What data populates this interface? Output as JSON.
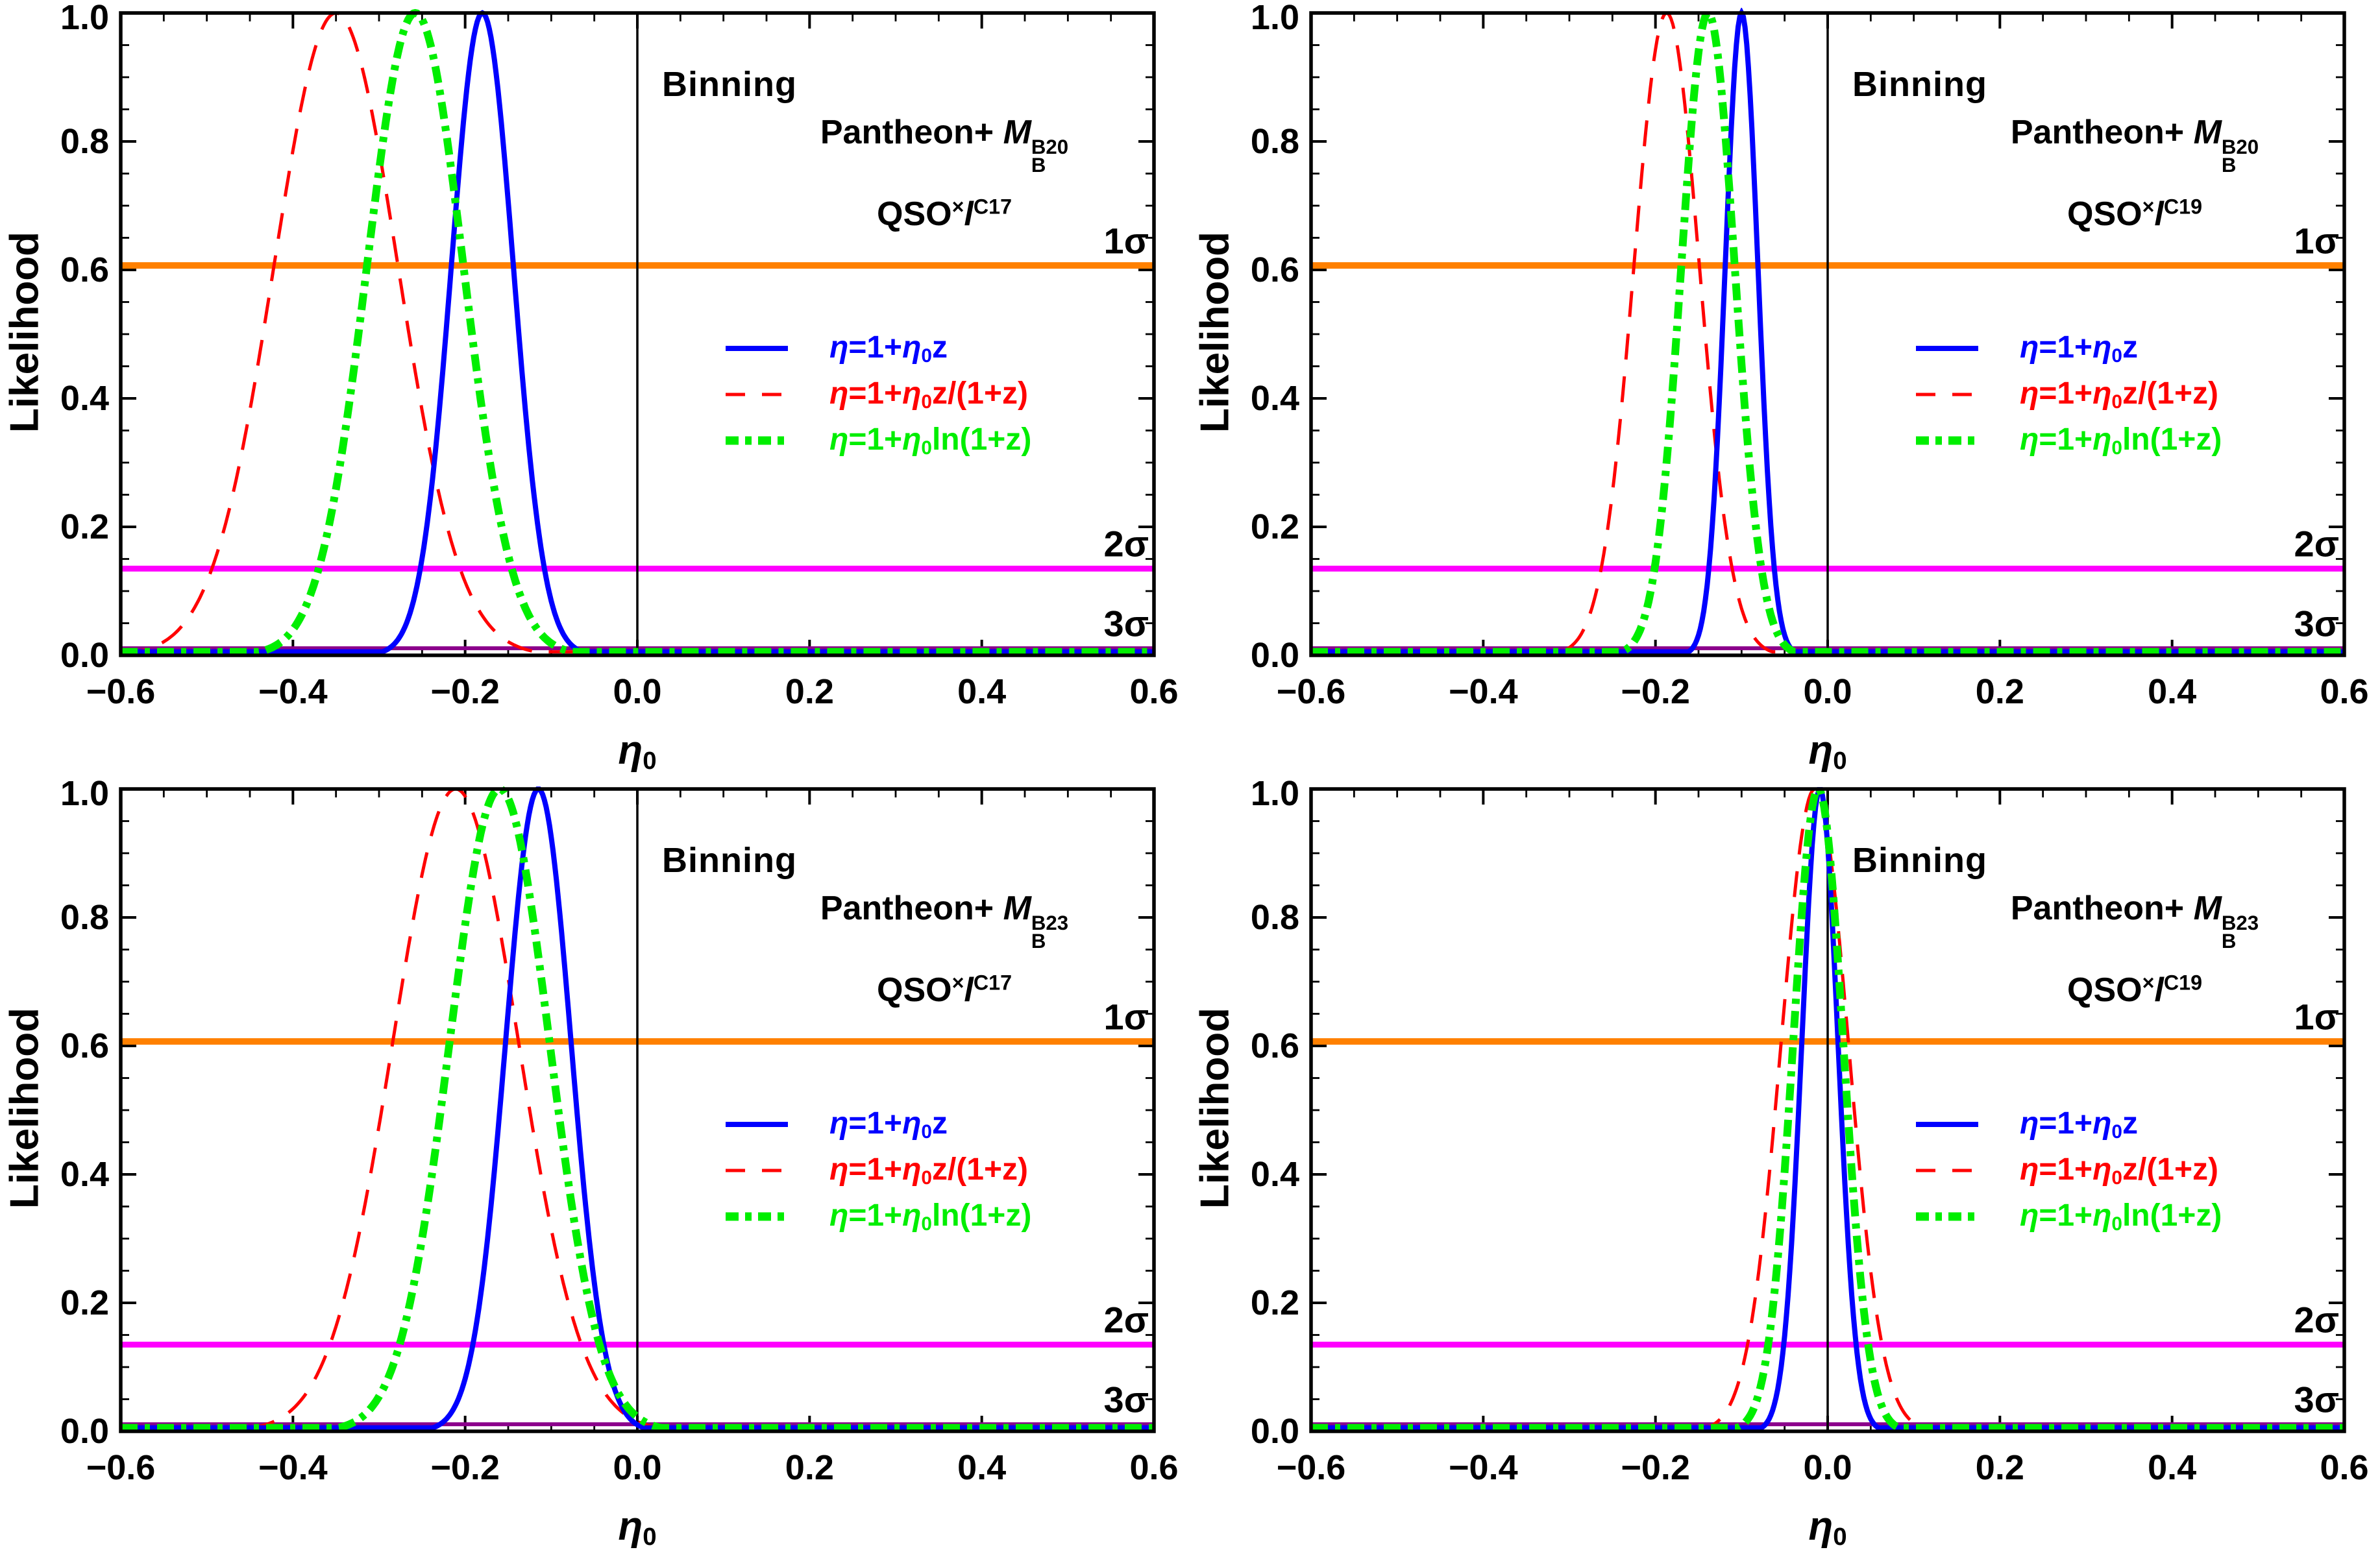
{
  "page": {
    "background": "#FFFFFF"
  },
  "chart_data": {
    "type": "line",
    "model": "gaussian likelihood: L(x)=peak*exp(-(x-mean)^2/(2*sigma^2))",
    "axes": {
      "ylabel": "Likelihood",
      "xlabel_parts": [
        {
          "t": "η",
          "i": true
        },
        {
          "t": "0",
          "pos": "sub"
        }
      ],
      "xlim": [
        -0.6,
        0.6
      ],
      "ylim": [
        0,
        1.0
      ],
      "x_major_ticks": [
        -0.6,
        -0.4,
        -0.2,
        0.0,
        0.2,
        0.4,
        0.6
      ],
      "x_tick_labels": [
        "−0.6",
        "−0.4",
        "−0.2",
        "0.0",
        "0.2",
        "0.4",
        "0.6"
      ],
      "y_major_ticks": [
        0.0,
        0.2,
        0.4,
        0.6,
        0.8,
        1.0
      ],
      "y_tick_labels": [
        "0.0",
        "0.2",
        "0.4",
        "0.6",
        "0.8",
        "1.0"
      ],
      "minor_tick_step": 0.05,
      "grid": false,
      "zero_reference_line_x": 0.0,
      "draw_order": [
        1,
        0,
        2
      ],
      "frame_color": "#000000"
    },
    "panels": [
      {
        "position": "top-left",
        "binning_label": "Binning",
        "title": {
          "line1_parts": [
            {
              "t": "Pantheon+ "
            },
            {
              "t": "M",
              "i": true
            },
            {
              "sup": "B20",
              "sub": "B"
            }
          ],
          "line2_parts": [
            {
              "t": "QSO"
            },
            {
              "t": "×",
              "pos": "sup"
            },
            {
              "t": "l",
              "i": true
            },
            {
              "t": "C17",
              "pos": "sup"
            }
          ]
        },
        "thresholds": [
          {
            "label": "1σ",
            "value": 0.607,
            "color": "#FF8000",
            "width": 10
          },
          {
            "label": "2σ",
            "value": 0.135,
            "color": "#FF00FF",
            "width": 9
          },
          {
            "label": "3σ",
            "value": 0.011,
            "color": "#8B008B",
            "width": 6
          }
        ],
        "series": [
          {
            "name": "eta-linear",
            "color": "#0000FF",
            "dash": "solid",
            "stroke_width": 8,
            "mean": -0.18,
            "sigma": 0.036,
            "peak": 1.0,
            "label_parts": [
              {
                "t": "η",
                "i": true
              },
              {
                "t": "=1+"
              },
              {
                "t": "η",
                "i": true
              },
              {
                "t": "0",
                "pos": "sub"
              },
              {
                "t": "z"
              }
            ]
          },
          {
            "name": "eta-z-over-1plusz",
            "color": "#FF0000",
            "dash": "dashed",
            "stroke_width": 5,
            "mean": -0.35,
            "sigma": 0.072,
            "peak": 1.0,
            "label_parts": [
              {
                "t": "η",
                "i": true
              },
              {
                "t": "=1+"
              },
              {
                "t": "η",
                "i": true
              },
              {
                "t": "0",
                "pos": "sub"
              },
              {
                "t": "z/(1+z)"
              }
            ]
          },
          {
            "name": "eta-log",
            "color": "#00EE00",
            "dash": "dashdot",
            "stroke_width": 12,
            "mean": -0.258,
            "sigma": 0.056,
            "peak": 1.0,
            "label_parts": [
              {
                "t": "η",
                "i": true
              },
              {
                "t": "=1+"
              },
              {
                "t": "η",
                "i": true
              },
              {
                "t": "0",
                "pos": "sub"
              },
              {
                "t": "ln(1+z)"
              }
            ]
          }
        ]
      },
      {
        "position": "top-right",
        "binning_label": "Binning",
        "title": {
          "line1_parts": [
            {
              "t": "Pantheon+ "
            },
            {
              "t": "M",
              "i": true
            },
            {
              "sup": "B20",
              "sub": "B"
            }
          ],
          "line2_parts": [
            {
              "t": "QSO"
            },
            {
              "t": "×",
              "pos": "sup"
            },
            {
              "t": "l",
              "i": true
            },
            {
              "t": "C19",
              "pos": "sup"
            }
          ]
        },
        "thresholds": [
          {
            "label": "1σ",
            "value": 0.607,
            "color": "#FF8000",
            "width": 10
          },
          {
            "label": "2σ",
            "value": 0.135,
            "color": "#FF00FF",
            "width": 9
          },
          {
            "label": "3σ",
            "value": 0.011,
            "color": "#8B008B",
            "width": 6
          }
        ],
        "series": [
          {
            "name": "eta-linear",
            "color": "#0000FF",
            "dash": "solid",
            "stroke_width": 8,
            "mean": -0.1,
            "sigma": 0.019,
            "peak": 1.0,
            "label_parts": [
              {
                "t": "η",
                "i": true
              },
              {
                "t": "=1+"
              },
              {
                "t": "η",
                "i": true
              },
              {
                "t": "0",
                "pos": "sub"
              },
              {
                "t": "z"
              }
            ]
          },
          {
            "name": "eta-z-over-1plusz",
            "color": "#FF0000",
            "dash": "dashed",
            "stroke_width": 5,
            "mean": -0.187,
            "sigma": 0.038,
            "peak": 1.0,
            "label_parts": [
              {
                "t": "η",
                "i": true
              },
              {
                "t": "=1+"
              },
              {
                "t": "η",
                "i": true
              },
              {
                "t": "0",
                "pos": "sub"
              },
              {
                "t": "z/(1+z)"
              }
            ]
          },
          {
            "name": "eta-log",
            "color": "#00EE00",
            "dash": "dashdot",
            "stroke_width": 12,
            "mean": -0.139,
            "sigma": 0.031,
            "peak": 1.0,
            "label_parts": [
              {
                "t": "η",
                "i": true
              },
              {
                "t": "=1+"
              },
              {
                "t": "η",
                "i": true
              },
              {
                "t": "0",
                "pos": "sub"
              },
              {
                "t": "ln(1+z)"
              }
            ]
          }
        ]
      },
      {
        "position": "bottom-left",
        "binning_label": "Binning",
        "title": {
          "line1_parts": [
            {
              "t": "Pantheon+ "
            },
            {
              "t": "M",
              "i": true
            },
            {
              "sup": "B23",
              "sub": "B"
            }
          ],
          "line2_parts": [
            {
              "t": "QSO"
            },
            {
              "t": "×",
              "pos": "sup"
            },
            {
              "t": "l",
              "i": true
            },
            {
              "t": "C17",
              "pos": "sup"
            }
          ]
        },
        "thresholds": [
          {
            "label": "1σ",
            "value": 0.607,
            "color": "#FF8000",
            "width": 10
          },
          {
            "label": "2σ",
            "value": 0.135,
            "color": "#FF00FF",
            "width": 9
          },
          {
            "label": "3σ",
            "value": 0.011,
            "color": "#8B008B",
            "width": 6
          }
        ],
        "series": [
          {
            "name": "eta-linear",
            "color": "#0000FF",
            "dash": "solid",
            "stroke_width": 8,
            "mean": -0.115,
            "sigma": 0.038,
            "peak": 1.0,
            "label_parts": [
              {
                "t": "η",
                "i": true
              },
              {
                "t": "=1+"
              },
              {
                "t": "η",
                "i": true
              },
              {
                "t": "0",
                "pos": "sub"
              },
              {
                "t": "z"
              }
            ]
          },
          {
            "name": "eta-z-over-1plusz",
            "color": "#FF0000",
            "dash": "dashed",
            "stroke_width": 5,
            "mean": -0.211,
            "sigma": 0.073,
            "peak": 1.0,
            "label_parts": [
              {
                "t": "η",
                "i": true
              },
              {
                "t": "=1+"
              },
              {
                "t": "η",
                "i": true
              },
              {
                "t": "0",
                "pos": "sub"
              },
              {
                "t": "z/(1+z)"
              }
            ]
          },
          {
            "name": "eta-log",
            "color": "#00EE00",
            "dash": "dashdot",
            "stroke_width": 12,
            "mean": -0.16,
            "sigma": 0.058,
            "peak": 1.0,
            "label_parts": [
              {
                "t": "η",
                "i": true
              },
              {
                "t": "=1+"
              },
              {
                "t": "η",
                "i": true
              },
              {
                "t": "0",
                "pos": "sub"
              },
              {
                "t": "ln(1+z)"
              }
            ]
          }
        ]
      },
      {
        "position": "bottom-right",
        "binning_label": "Binning",
        "title": {
          "line1_parts": [
            {
              "t": "Pantheon+ "
            },
            {
              "t": "M",
              "i": true
            },
            {
              "sup": "B23",
              "sub": "B"
            }
          ],
          "line2_parts": [
            {
              "t": "QSO"
            },
            {
              "t": "×",
              "pos": "sup"
            },
            {
              "t": "l",
              "i": true
            },
            {
              "t": "C19",
              "pos": "sup"
            }
          ]
        },
        "thresholds": [
          {
            "label": "1σ",
            "value": 0.607,
            "color": "#FF8000",
            "width": 10
          },
          {
            "label": "2σ",
            "value": 0.135,
            "color": "#FF00FF",
            "width": 9
          },
          {
            "label": "3σ",
            "value": 0.011,
            "color": "#8B008B",
            "width": 6
          }
        ],
        "series": [
          {
            "name": "eta-linear",
            "color": "#0000FF",
            "dash": "solid",
            "stroke_width": 8,
            "mean": -0.009,
            "sigma": 0.021,
            "peak": 1.0,
            "label_parts": [
              {
                "t": "η",
                "i": true
              },
              {
                "t": "=1+"
              },
              {
                "t": "η",
                "i": true
              },
              {
                "t": "0",
                "pos": "sub"
              },
              {
                "t": "z"
              }
            ]
          },
          {
            "name": "eta-z-over-1plusz",
            "color": "#FF0000",
            "dash": "dashed",
            "stroke_width": 5,
            "mean": -0.015,
            "sigma": 0.039,
            "peak": 1.0,
            "label_parts": [
              {
                "t": "η",
                "i": true
              },
              {
                "t": "=1+"
              },
              {
                "t": "η",
                "i": true
              },
              {
                "t": "0",
                "pos": "sub"
              },
              {
                "t": "z/(1+z)"
              }
            ]
          },
          {
            "name": "eta-log",
            "color": "#00EE00",
            "dash": "dashdot",
            "stroke_width": 12,
            "mean": -0.011,
            "sigma": 0.029,
            "peak": 1.0,
            "label_parts": [
              {
                "t": "η",
                "i": true
              },
              {
                "t": "=1+"
              },
              {
                "t": "η",
                "i": true
              },
              {
                "t": "0",
                "pos": "sub"
              },
              {
                "t": "ln(1+z)"
              }
            ]
          }
        ]
      }
    ]
  }
}
